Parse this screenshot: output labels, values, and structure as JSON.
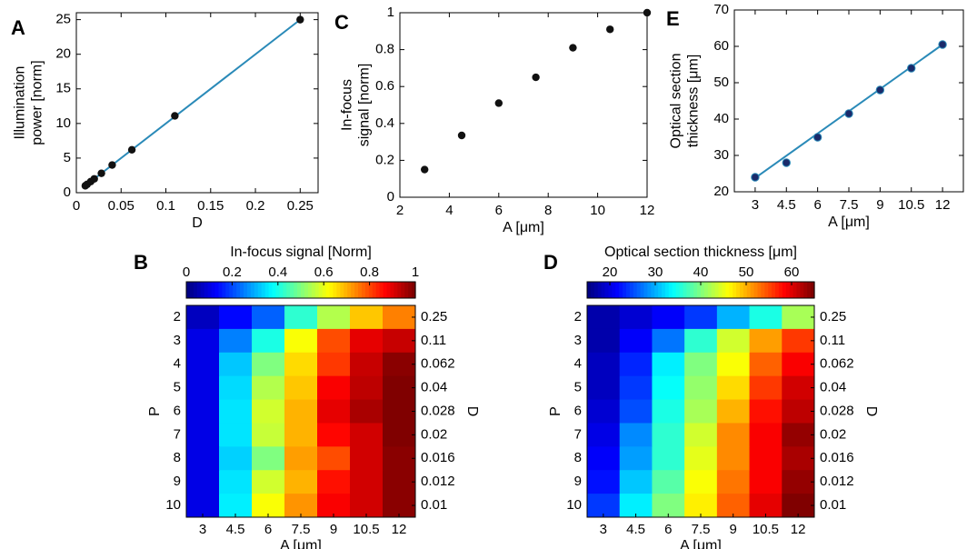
{
  "chart_data": [
    {
      "panel": "A",
      "type": "line",
      "title": "",
      "xlabel": "D",
      "ylabel": "Illumination\npower [norm]",
      "xlim": [
        0,
        0.27
      ],
      "ylim": [
        0,
        26
      ],
      "xticks": [
        0,
        0.05,
        0.1,
        0.15,
        0.2,
        0.25
      ],
      "xtick_labels": [
        "0",
        "0.05",
        "0.1",
        "0.15",
        "0.2",
        "0.25"
      ],
      "yticks": [
        0,
        5,
        10,
        15,
        20,
        25
      ],
      "ytick_labels": [
        "0",
        "5",
        "10",
        "15",
        "20",
        "25"
      ],
      "points": {
        "x": [
          0.01,
          0.012,
          0.016,
          0.02,
          0.028,
          0.04,
          0.062,
          0.11,
          0.25
        ],
        "y": [
          1.0,
          1.2,
          1.6,
          2.0,
          2.8,
          4.0,
          6.2,
          11.1,
          25.0
        ]
      },
      "fit_line": {
        "x": [
          0.01,
          0.25
        ],
        "y": [
          1.0,
          25.0
        ]
      },
      "line_color": "#2a8ab8",
      "marker_color": "#111111",
      "grid": false
    },
    {
      "panel": "C",
      "type": "scatter",
      "title": "",
      "xlabel": "A [μm]",
      "ylabel": "In-focus\nsignal [norm]",
      "xlim": [
        2,
        12
      ],
      "ylim": [
        0,
        1
      ],
      "xticks": [
        2,
        4,
        6,
        8,
        10,
        12
      ],
      "xtick_labels": [
        "2",
        "4",
        "6",
        "8",
        "10",
        "12"
      ],
      "yticks": [
        0,
        0.2,
        0.4,
        0.6,
        0.8,
        1
      ],
      "ytick_labels": [
        "0",
        "0.2",
        "0.4",
        "0.6",
        "0.8",
        "1"
      ],
      "points": {
        "x": [
          3,
          4.5,
          6,
          7.5,
          9,
          10.5,
          12
        ],
        "y": [
          0.15,
          0.335,
          0.51,
          0.65,
          0.81,
          0.91,
          1.0
        ]
      },
      "marker_color": "#111111",
      "grid": false
    },
    {
      "panel": "E",
      "type": "line",
      "title": "",
      "xlabel": "A [μm]",
      "ylabel": "Optical section\nthickness [μm]",
      "xlim": [
        2,
        13
      ],
      "ylim": [
        20,
        70
      ],
      "xticks": [
        3,
        4.5,
        6,
        7.5,
        9,
        10.5,
        12
      ],
      "xtick_labels": [
        "3",
        "4.5",
        "6",
        "7.5",
        "9",
        "10.5",
        "12"
      ],
      "yticks": [
        20,
        30,
        40,
        50,
        60,
        70
      ],
      "ytick_labels": [
        "20",
        "30",
        "40",
        "50",
        "60",
        "70"
      ],
      "points": {
        "x": [
          3,
          4.5,
          6,
          7.5,
          9,
          10.5,
          12
        ],
        "y": [
          24,
          28,
          35,
          41.5,
          48,
          54,
          60.5
        ]
      },
      "fit_line": {
        "x": [
          3,
          12
        ],
        "y": [
          23.8,
          60.5
        ]
      },
      "line_color": "#2a8ab8",
      "marker_color": "#1a2a6a",
      "grid": false
    },
    {
      "panel": "B",
      "type": "heatmap",
      "colorbar_title": "In-focus signal [Norm]",
      "colorbar_range": [
        0,
        1
      ],
      "colorbar_ticks": [
        0,
        0.2,
        0.4,
        0.6,
        0.8,
        1
      ],
      "colorbar_tick_labels": [
        "0",
        "0.2",
        "0.4",
        "0.6",
        "0.8",
        "1"
      ],
      "xlabel": "A [μm]",
      "ylabel_left": "P",
      "ylabel_right": "D",
      "x_categories": [
        "3",
        "4.5",
        "6",
        "7.5",
        "9",
        "10.5",
        "12"
      ],
      "y_categories_left": [
        "2",
        "3",
        "4",
        "5",
        "6",
        "7",
        "8",
        "9",
        "10"
      ],
      "y_categories_right": [
        "0.25",
        "0.11",
        "0.062",
        "0.04",
        "0.028",
        "0.02",
        "0.016",
        "0.012",
        "0.01"
      ],
      "values": [
        [
          0.06,
          0.13,
          0.22,
          0.42,
          0.55,
          0.68,
          0.75
        ],
        [
          0.1,
          0.25,
          0.4,
          0.62,
          0.8,
          0.9,
          0.93
        ],
        [
          0.1,
          0.32,
          0.5,
          0.66,
          0.82,
          0.93,
          0.99
        ],
        [
          0.1,
          0.34,
          0.55,
          0.68,
          0.88,
          0.94,
          1.0
        ],
        [
          0.1,
          0.35,
          0.58,
          0.7,
          0.9,
          0.96,
          1.0
        ],
        [
          0.1,
          0.35,
          0.57,
          0.7,
          0.87,
          0.92,
          1.0
        ],
        [
          0.1,
          0.33,
          0.5,
          0.72,
          0.8,
          0.92,
          0.99
        ],
        [
          0.1,
          0.35,
          0.58,
          0.7,
          0.86,
          0.92,
          0.99
        ],
        [
          0.1,
          0.36,
          0.62,
          0.73,
          0.88,
          0.92,
          0.99
        ]
      ]
    },
    {
      "panel": "D",
      "type": "heatmap",
      "colorbar_title": "Optical section thickness [μm]",
      "colorbar_range": [
        15,
        65
      ],
      "colorbar_ticks": [
        20,
        30,
        40,
        50,
        60
      ],
      "colorbar_tick_labels": [
        "20",
        "30",
        "40",
        "50",
        "60"
      ],
      "xlabel": "A [μm]",
      "ylabel_left": "P",
      "ylabel_right": "D",
      "x_categories": [
        "3",
        "4.5",
        "6",
        "7.5",
        "9",
        "10.5",
        "12"
      ],
      "y_categories_left": [
        "2",
        "3",
        "4",
        "5",
        "6",
        "7",
        "8",
        "9",
        "10"
      ],
      "y_categories_right": [
        "0.25",
        "0.11",
        "0.062",
        "0.04",
        "0.028",
        "0.02",
        "0.016",
        "0.012",
        "0.01"
      ],
      "values": [
        [
          17,
          19,
          21,
          24,
          30,
          35,
          42
        ],
        [
          17,
          21,
          27,
          36,
          44,
          51,
          56
        ],
        [
          18,
          23,
          33,
          40,
          46,
          54,
          59
        ],
        [
          18,
          24,
          34,
          41,
          48,
          56,
          61
        ],
        [
          19,
          25,
          35,
          42,
          50,
          58,
          62
        ],
        [
          20,
          28,
          36,
          44,
          52,
          59,
          64
        ],
        [
          21,
          29,
          36,
          45,
          52,
          59,
          63
        ],
        [
          22,
          31,
          38,
          46,
          53,
          59,
          64
        ],
        [
          24,
          33,
          40,
          47,
          54,
          60,
          65
        ]
      ]
    }
  ],
  "panel_letters": {
    "a": "A",
    "b": "B",
    "c": "C",
    "d": "D",
    "e": "E"
  }
}
